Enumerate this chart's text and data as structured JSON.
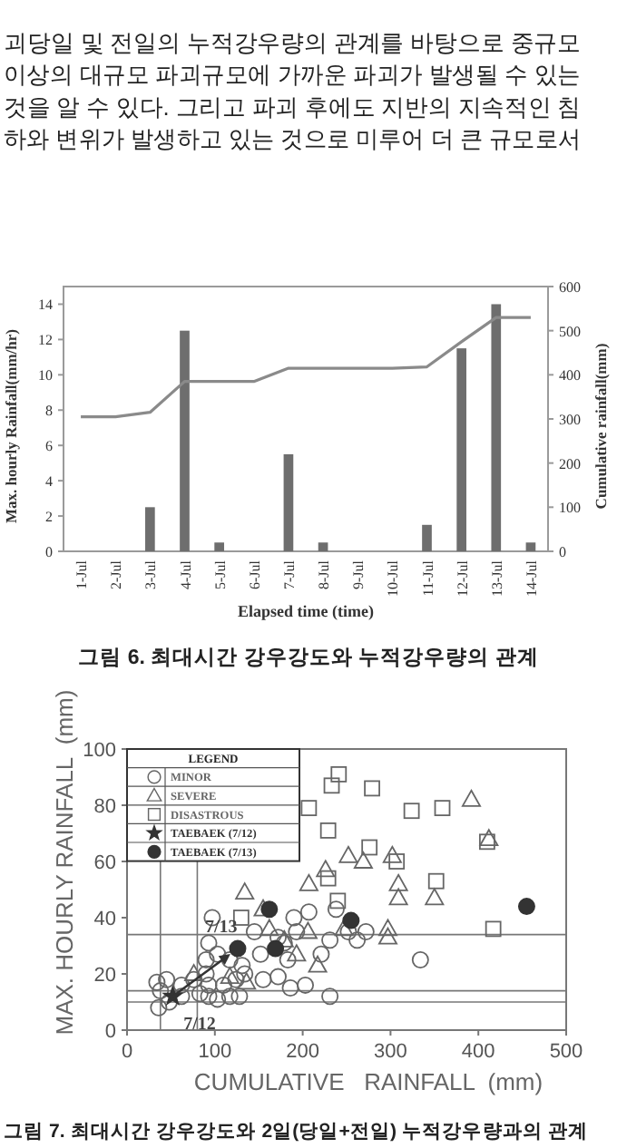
{
  "chart_data": [
    {
      "type": "other",
      "annotations": [
        "괴당일 및 전일의 누적강우량의 관계를 바탕으로 중규모",
        "이상의 대규모 파괴규모에 가까운 파괴가 발생될 수 있는",
        "것을 알 수 있다. 그리고 파괴 후에도 지반의 지속적인 침",
        "하와 변위가 발생하고 있는 것으로 미루어 더 큰 규모로서"
      ]
    },
    {
      "type": "bar",
      "categories": [
        "1-Jul",
        "2-Jul",
        "3-Jul",
        "4-Jul",
        "5-Jul",
        "6-Jul",
        "7-Jul",
        "8-Jul",
        "9-Jul",
        "10-Jul",
        "11-Jul",
        "12-Jul",
        "13-Jul",
        "14-Jul"
      ],
      "series": [
        {
          "type": "bar",
          "color": "#6e6e6e",
          "values": [
            0,
            0,
            2.5,
            12.5,
            0.5,
            0,
            5.5,
            0.5,
            0,
            0,
            1.5,
            11.5,
            14,
            0.5
          ]
        },
        {
          "type": "line",
          "axis": "y2",
          "color": "#8a8a8a",
          "values": [
            305,
            305,
            315,
            385,
            385,
            385,
            415,
            415,
            415,
            415,
            418,
            475,
            530,
            530
          ]
        }
      ],
      "xlabel": "Elapsed time (time)",
      "ylabel": "Max. hourly Rainfall(mm/hr)",
      "y2label": "Cumulative rainfall(mm)",
      "ylim": [
        0,
        15
      ],
      "yticks": [
        0,
        2,
        4,
        6,
        8,
        10,
        12,
        14
      ],
      "y2lim": [
        0,
        600
      ],
      "y2ticks": [
        0,
        100,
        200,
        300,
        400,
        500,
        600
      ],
      "annotations": [
        "그림 6. 최대시간 강우강도와 누적강우량의 관계"
      ]
    },
    {
      "type": "scatter",
      "xlabel": "CUMULATIVE   RAINFALL  (mm)",
      "ylabel": "MAX. HOURLY RAINFALL  (mm)",
      "xlim": [
        0,
        500
      ],
      "xticks": [
        0,
        100,
        200,
        300,
        400,
        500
      ],
      "ylim": [
        0,
        100
      ],
      "yticks": [
        0,
        20,
        40,
        60,
        80,
        100
      ],
      "legend": "top left",
      "legend_title": "LEGEND",
      "series": [
        {
          "name": "MINOR",
          "marker": "circle",
          "color": "#666666",
          "x": [
            34,
            38,
            45,
            36,
            48,
            62,
            97,
            93,
            90,
            103,
            117,
            131,
            83,
            93,
            103,
            117,
            128,
            93,
            110,
            124,
            134,
            152,
            155,
            172,
            183,
            179,
            190,
            193,
            207,
            203,
            186,
            221,
            231,
            238,
            252,
            262,
            272,
            231,
            334,
            90,
            76,
            62,
            172,
            145
          ],
          "values": [
            17,
            14,
            18,
            8,
            10,
            16,
            40,
            31,
            25,
            27,
            25,
            23,
            13,
            12,
            11,
            12,
            12,
            16,
            16,
            18,
            20,
            27,
            18,
            19,
            25,
            31,
            40,
            35,
            42,
            16,
            15,
            27,
            32,
            43,
            35,
            32,
            35,
            12,
            25,
            20,
            18,
            12,
            33,
            35
          ]
        },
        {
          "name": "SEVERE",
          "marker": "triangle",
          "color": "#666666",
          "x": [
            392,
            412,
            252,
            269,
            302,
            309,
            309,
            350,
            207,
            226,
            134,
            155,
            297,
            297,
            247,
            206,
            193,
            217,
            179,
            162,
            136,
            117,
            76
          ],
          "values": [
            82,
            68,
            62,
            60,
            62,
            52,
            47,
            47,
            52,
            57,
            49,
            43,
            36,
            33,
            36,
            35,
            27,
            23,
            32,
            36,
            17,
            19,
            20
          ]
        },
        {
          "name": "DISASTROUS",
          "marker": "square",
          "color": "#666666",
          "x": [
            241,
            233,
            279,
            207,
            324,
            359,
            229,
            276,
            307,
            410,
            229,
            240,
            352,
            417,
            130
          ],
          "values": [
            91,
            87,
            86,
            79,
            78,
            79,
            71,
            65,
            60,
            67,
            54,
            46,
            53,
            36,
            40
          ]
        },
        {
          "name": "TAEBAEK (7/12)",
          "marker": "star",
          "color": "#333333",
          "x": [
            52
          ],
          "values": [
            12
          ]
        },
        {
          "name": "TAEBAEK (7/13)",
          "marker": "circle",
          "color": "#333333",
          "x": [
            126,
            162,
            169,
            255,
            455
          ],
          "values": [
            29,
            43,
            29,
            39,
            44
          ]
        }
      ],
      "ref_lines": [
        {
          "axis": "x",
          "value": 38,
          "color": "#777777"
        },
        {
          "axis": "x",
          "value": 80,
          "color": "#777777"
        },
        {
          "axis": "y",
          "value": 34,
          "color": "#777777"
        },
        {
          "axis": "y",
          "value": 14,
          "color": "#777777"
        },
        {
          "axis": "y",
          "value": 10,
          "color": "#777777"
        }
      ],
      "annotations": [
        {
          "text": "7/12",
          "x": 52,
          "y": 12
        },
        {
          "text": "7/13",
          "x": 126,
          "y": 29
        },
        "그림 7. 최대시간 강우강도와 2일(당일+전일) 누적강우량과의 관계"
      ]
    }
  ]
}
